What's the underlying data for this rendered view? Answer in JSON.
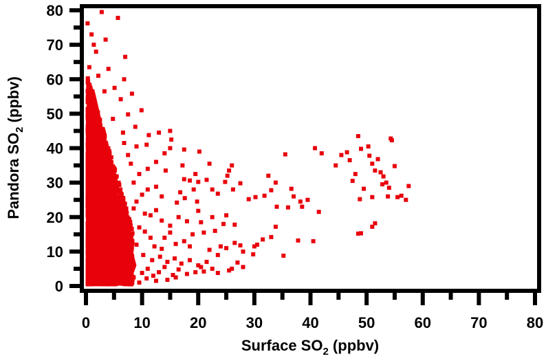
{
  "chart_data": {
    "type": "scatter",
    "title": "",
    "xlabel": "Surface SO2 (ppbv)",
    "ylabel": "Pandora SO2 (ppbv)",
    "xlabel_parts": {
      "pre": "Surface SO",
      "sub": "2",
      "post": " (ppbv)"
    },
    "ylabel_parts": {
      "pre": "Pandora SO",
      "sub": "2",
      "post": " (ppbv)"
    },
    "xlim": [
      0,
      80
    ],
    "ylim": [
      0,
      80
    ],
    "x_ticks": [
      0,
      10,
      20,
      30,
      40,
      50,
      60,
      70,
      80
    ],
    "y_ticks": [
      0,
      10,
      20,
      30,
      40,
      50,
      60,
      70,
      80
    ],
    "x_minor_ticks": [
      5,
      15,
      25,
      35,
      45,
      55,
      65,
      75
    ],
    "y_minor_ticks": [
      5,
      15,
      25,
      35,
      45,
      55,
      65,
      75
    ],
    "grid": false,
    "legend": null,
    "marker": "square",
    "color": "#e8000b",
    "dense_cluster": {
      "description": "Several thousand points concentrated at Surface SO2 0-8 ppbv, Pandora SO2 0-60 ppbv, density decreasing with x",
      "x_range": [
        0,
        8
      ],
      "y_range": [
        0,
        60
      ],
      "count": 2600
    },
    "points": [
      [
        2.8,
        79.5
      ],
      [
        5.7,
        77.8
      ],
      [
        0.3,
        76.2
      ],
      [
        1.0,
        73.0
      ],
      [
        3.5,
        71.5
      ],
      [
        7.0,
        66.5
      ],
      [
        1.4,
        70.0
      ],
      [
        1.8,
        68.0
      ],
      [
        0.6,
        63.5
      ],
      [
        4.0,
        63.0
      ],
      [
        2.2,
        61.0
      ],
      [
        6.8,
        60.0
      ],
      [
        5.1,
        57.5
      ],
      [
        3.3,
        56.5
      ],
      [
        8.2,
        55.8
      ],
      [
        6.2,
        54.2
      ],
      [
        9.9,
        51.0
      ],
      [
        7.5,
        49.8
      ],
      [
        4.8,
        48.5
      ],
      [
        8.8,
        46.2
      ],
      [
        6.6,
        44.5
      ],
      [
        11.2,
        43.8
      ],
      [
        15.0,
        45.0
      ],
      [
        13.0,
        44.5
      ],
      [
        15.2,
        42.5
      ],
      [
        10.8,
        41.0
      ],
      [
        9.0,
        40.5
      ],
      [
        15.0,
        40.0
      ],
      [
        17.5,
        39.6
      ],
      [
        20.2,
        39.0
      ],
      [
        14.0,
        38.5
      ],
      [
        12.5,
        36.0
      ],
      [
        17.2,
        35.0
      ],
      [
        22.0,
        35.5
      ],
      [
        11.0,
        34.0
      ],
      [
        14.2,
        33.5
      ],
      [
        19.5,
        32.5
      ],
      [
        22.5,
        28.0
      ],
      [
        17.5,
        31.0
      ],
      [
        18.5,
        30.6
      ],
      [
        20.0,
        30.2
      ],
      [
        21.5,
        30.8
      ],
      [
        16.8,
        27.2
      ],
      [
        19.2,
        28.0
      ],
      [
        17.6,
        25.5
      ],
      [
        16.2,
        24.2
      ],
      [
        19.8,
        24.5
      ],
      [
        23.5,
        26.8
      ],
      [
        24.8,
        30.2
      ],
      [
        25.5,
        33.5
      ],
      [
        26.0,
        35.0
      ],
      [
        25.2,
        32.0
      ],
      [
        26.2,
        28.0
      ],
      [
        27.5,
        29.8
      ],
      [
        29.0,
        25.2
      ],
      [
        30.2,
        25.8
      ],
      [
        31.8,
        26.2
      ],
      [
        33.0,
        27.8
      ],
      [
        33.8,
        30.0
      ],
      [
        32.5,
        32.0
      ],
      [
        35.5,
        38.2
      ],
      [
        36.6,
        28.2
      ],
      [
        37.0,
        26.0
      ],
      [
        38.2,
        24.5
      ],
      [
        39.5,
        25.0
      ],
      [
        40.8,
        40.0
      ],
      [
        42.0,
        38.5
      ],
      [
        44.5,
        35.0
      ],
      [
        45.5,
        38.0
      ],
      [
        46.5,
        38.8
      ],
      [
        47.0,
        36.5
      ],
      [
        47.5,
        30.5
      ],
      [
        48.0,
        32.5
      ],
      [
        48.5,
        43.5
      ],
      [
        49.0,
        39.8
      ],
      [
        50.3,
        40.5
      ],
      [
        50.5,
        37.8
      ],
      [
        51.0,
        35.5
      ],
      [
        51.5,
        33.5
      ],
      [
        52.0,
        36.8
      ],
      [
        52.5,
        33.0
      ],
      [
        53.0,
        31.8
      ],
      [
        53.5,
        30.0
      ],
      [
        54.0,
        28.5
      ],
      [
        54.3,
        42.8
      ],
      [
        54.5,
        42.3
      ],
      [
        55.0,
        34.8
      ],
      [
        51.0,
        25.8
      ],
      [
        52.8,
        29.5
      ],
      [
        53.8,
        26.0
      ],
      [
        55.5,
        25.8
      ],
      [
        56.2,
        26.2
      ],
      [
        57.0,
        25.0
      ],
      [
        57.5,
        29.0
      ],
      [
        49.5,
        28.2
      ],
      [
        48.8,
        25.2
      ],
      [
        51.5,
        18.2
      ],
      [
        51.0,
        17.2
      ],
      [
        48.5,
        15.2
      ],
      [
        49.0,
        15.3
      ],
      [
        41.5,
        21.5
      ],
      [
        36.0,
        22.8
      ],
      [
        38.5,
        23.0
      ],
      [
        34.0,
        23.0
      ],
      [
        37.8,
        13.2
      ],
      [
        40.5,
        13.0
      ],
      [
        35.2,
        8.8
      ],
      [
        31.5,
        13.5
      ],
      [
        30.0,
        11.5
      ],
      [
        33.8,
        17.2
      ],
      [
        33.0,
        14.2
      ],
      [
        30.5,
        12.0
      ],
      [
        29.8,
        9.2
      ],
      [
        28.0,
        10.0
      ],
      [
        27.5,
        11.8
      ],
      [
        25.0,
        11.0
      ],
      [
        26.5,
        12.5
      ],
      [
        24.0,
        11.5
      ],
      [
        23.5,
        9.0
      ],
      [
        22.0,
        10.5
      ],
      [
        28.0,
        5.5
      ],
      [
        27.0,
        6.8
      ],
      [
        26.0,
        5.0
      ],
      [
        25.5,
        4.5
      ],
      [
        23.5,
        3.8
      ],
      [
        21.0,
        4.2
      ],
      [
        19.5,
        4.0
      ],
      [
        20.5,
        5.5
      ],
      [
        18.0,
        3.5
      ],
      [
        16.5,
        4.8
      ],
      [
        15.5,
        3.2
      ],
      [
        14.0,
        5.5
      ],
      [
        13.0,
        4.0
      ],
      [
        12.0,
        3.0
      ],
      [
        11.0,
        5.0
      ],
      [
        10.0,
        3.8
      ],
      [
        18.5,
        11.5
      ],
      [
        17.5,
        13.0
      ],
      [
        16.0,
        12.2
      ],
      [
        15.0,
        15.5
      ],
      [
        14.0,
        14.0
      ],
      [
        13.5,
        10.8
      ],
      [
        12.2,
        11.5
      ],
      [
        11.5,
        14.0
      ],
      [
        10.5,
        15.8
      ],
      [
        9.5,
        17.0
      ],
      [
        20.5,
        18.5
      ],
      [
        22.5,
        20.0
      ],
      [
        21.0,
        15.5
      ],
      [
        19.0,
        15.0
      ],
      [
        23.0,
        16.0
      ],
      [
        24.5,
        18.0
      ],
      [
        26.5,
        17.8
      ],
      [
        25.0,
        20.5
      ],
      [
        20.0,
        21.8
      ],
      [
        18.0,
        18.8
      ],
      [
        16.5,
        20.0
      ],
      [
        15.0,
        17.5
      ],
      [
        13.5,
        19.0
      ],
      [
        12.5,
        22.0
      ],
      [
        11.5,
        20.5
      ],
      [
        10.5,
        21.0
      ],
      [
        9.0,
        24.5
      ],
      [
        10.0,
        26.5
      ],
      [
        11.0,
        28.0
      ],
      [
        12.5,
        28.8
      ],
      [
        13.5,
        26.0
      ],
      [
        8.5,
        30.0
      ],
      [
        9.5,
        32.5
      ],
      [
        8.0,
        35.5
      ],
      [
        7.5,
        38.0
      ],
      [
        6.8,
        41.5
      ],
      [
        8.5,
        22.5
      ],
      [
        9.0,
        12.0
      ],
      [
        10.2,
        9.0
      ],
      [
        11.8,
        7.5
      ],
      [
        13.2,
        8.5
      ],
      [
        14.5,
        7.0
      ],
      [
        15.8,
        8.0
      ],
      [
        17.0,
        6.5
      ],
      [
        18.5,
        7.5
      ],
      [
        20.0,
        6.0
      ],
      [
        21.5,
        7.0
      ],
      [
        22.5,
        5.0
      ],
      [
        16.0,
        2.5
      ],
      [
        14.5,
        1.8
      ],
      [
        12.5,
        1.5
      ],
      [
        10.8,
        2.2
      ],
      [
        9.5,
        1.0
      ],
      [
        8.5,
        2.5
      ],
      [
        7.8,
        1.2
      ]
    ]
  }
}
